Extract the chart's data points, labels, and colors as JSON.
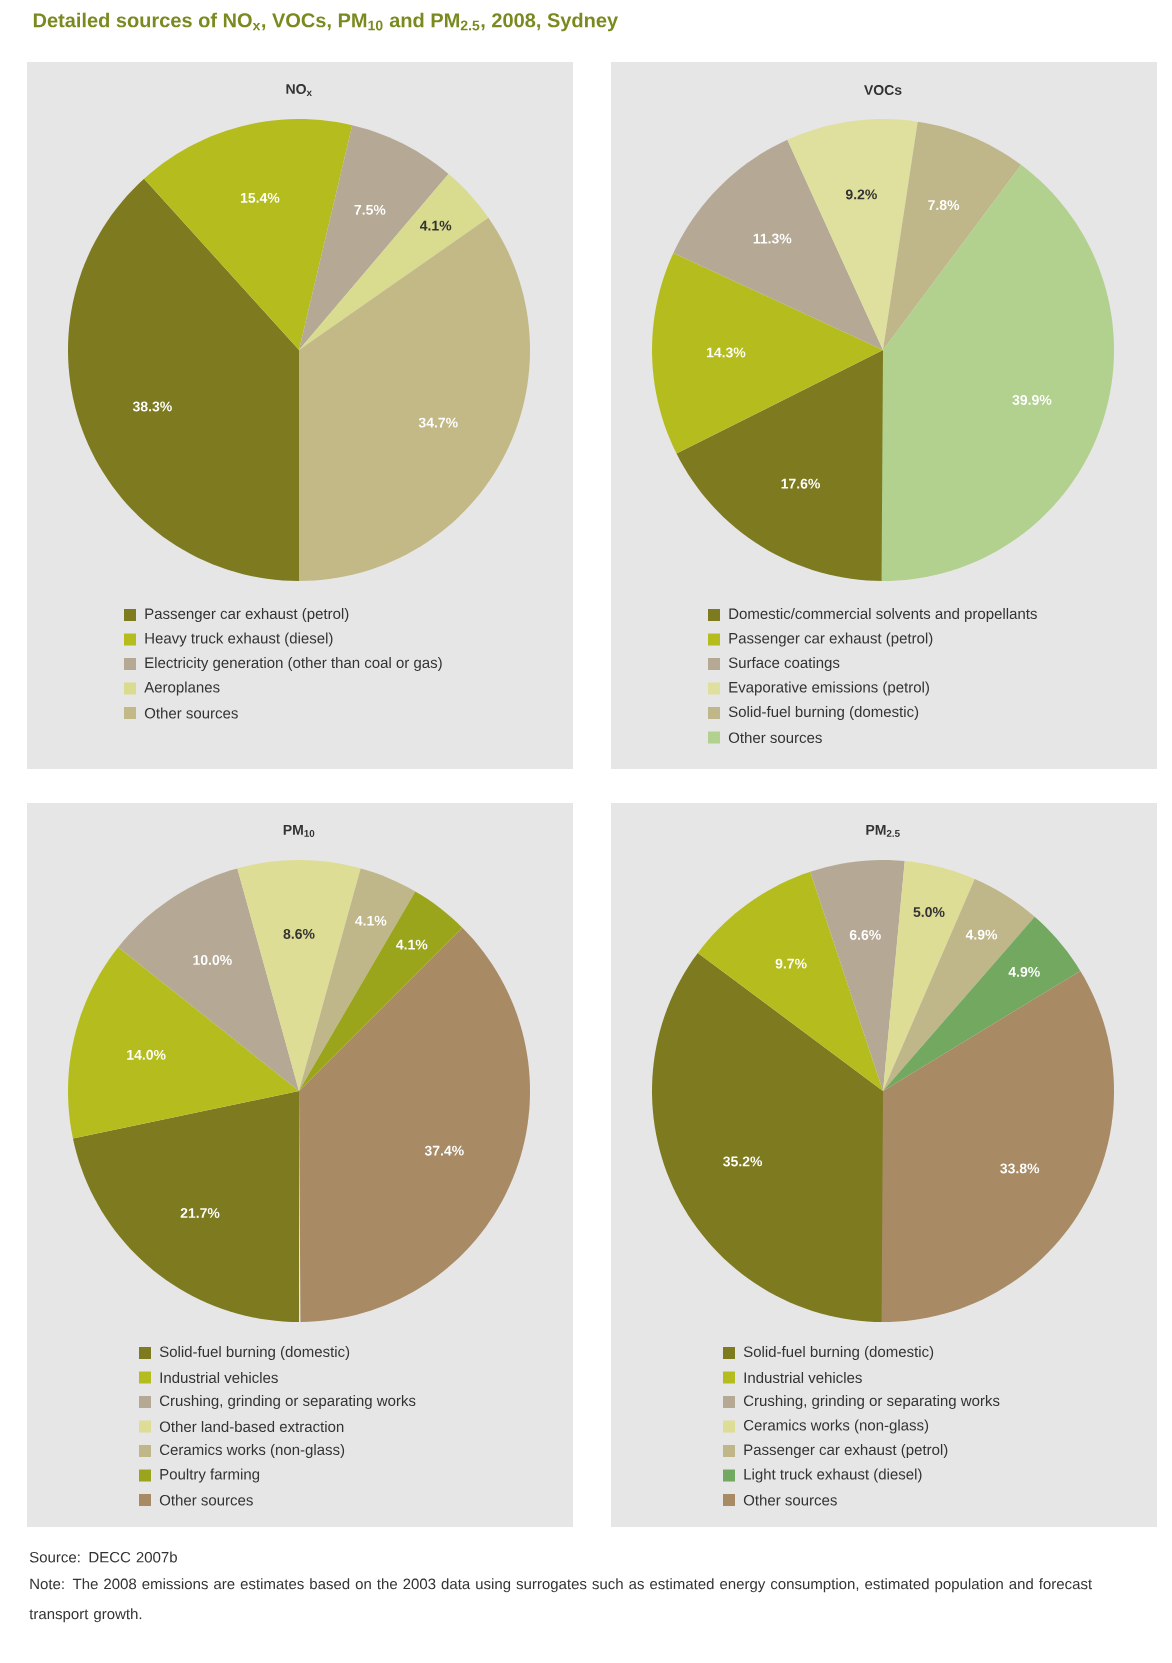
{
  "chart_data": [
    {
      "type": "other",
      "title": "Detailed sources of NO$_{x}$, VOCs, PM$_{10}$ and PM$_{2.5}$, 2008, Sydney",
      "annotations": [
        "Source:  DECC 2007b",
        "Note:  The 2008 emissions are estimates based on the 2003 data using surrogates such as estimated energy consumption, estimated population and forecast transport growth."
      ]
    },
    {
      "type": "pie",
      "title": "NO$_{x}$",
      "legend": "bottom",
      "categories": [
        "Passenger car exhaust (petrol)",
        "Heavy truck exhaust (diesel)",
        "Electricity generation (other than coal or gas)",
        "Aeroplanes",
        "Other sources"
      ],
      "values": [
        38.3,
        15.4,
        7.5,
        4.1,
        34.7
      ],
      "value_labels": [
        "38.3%",
        "15.4%",
        "7.5%",
        "4.1%",
        "34.7%"
      ],
      "colors": [
        "#7d7a1f",
        "#b5bd1e",
        "#b5a995",
        "#d9dc8e",
        "#c2b986"
      ]
    },
    {
      "type": "pie",
      "title": "VOCs",
      "legend": "bottom",
      "categories": [
        "Domestic/commercial solvents and propellants",
        "Passenger car exhaust (petrol)",
        "Surface coatings",
        "Evaporative emissions (petrol)",
        "Solid-fuel burning (domestic)",
        "Other sources"
      ],
      "values": [
        17.6,
        14.3,
        11.3,
        9.2,
        7.8,
        39.9
      ],
      "value_labels": [
        "17.6%",
        "14.3%",
        "11.3%",
        "9.2%",
        "7.8%",
        "39.9%"
      ],
      "colors": [
        "#7d7a1f",
        "#b5bd1e",
        "#b5a995",
        "#e0e09e",
        "#bfb68a",
        "#b2d08e"
      ]
    },
    {
      "type": "pie",
      "title": "PM$_{10}$",
      "legend": "bottom",
      "categories": [
        "Solid-fuel burning (domestic)",
        "Industrial vehicles",
        "Crushing, grinding or separating works",
        "Other land-based extraction",
        "Ceramics works (non-glass)",
        "Poultry farming",
        "Other sources"
      ],
      "values": [
        21.7,
        14.0,
        10.0,
        8.6,
        4.1,
        4.1,
        37.4
      ],
      "value_labels": [
        "21.7%",
        "14.0%",
        "10.0%",
        "8.6%",
        "4.1%",
        "4.1%",
        "37.4%"
      ],
      "colors": [
        "#7d7a1f",
        "#b5bd1e",
        "#b5a995",
        "#dedd95",
        "#bfb68a",
        "#9aa51c",
        "#a88a64"
      ]
    },
    {
      "type": "pie",
      "title": "PM$_{2.5}$",
      "legend": "bottom",
      "categories": [
        "Solid-fuel burning (domestic)",
        "Industrial vehicles",
        "Crushing, grinding or separating works",
        "Ceramics works (non-glass)",
        "Passenger car exhaust (petrol)",
        "Light truck exhaust (diesel)",
        "Other sources"
      ],
      "values": [
        35.2,
        9.7,
        6.6,
        5.0,
        4.9,
        4.9,
        33.8
      ],
      "value_labels": [
        "35.2%",
        "9.7%",
        "6.6%",
        "5.0%",
        "4.9%",
        "4.9%",
        "33.8%"
      ],
      "colors": [
        "#7d7a1f",
        "#b5bd1e",
        "#b5a995",
        "#dedd95",
        "#bfb68a",
        "#72a860",
        "#a88a64"
      ]
    }
  ]
}
